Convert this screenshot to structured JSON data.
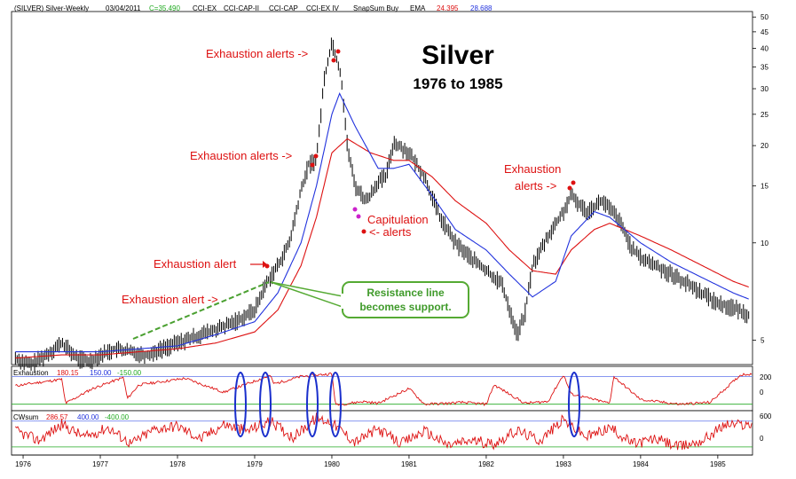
{
  "header": {
    "symbol": "(SILVER) Silver-Weekly",
    "date": "03/04/2011",
    "close": "C=35.490",
    "ind1": "CCI-EX",
    "ind2": "CCI-CAP-II",
    "ind3": "CCI-CAP",
    "ind4": "CCI-EX IV",
    "snap": "SnapSum Buy",
    "ema_label": "EMA",
    "ema1": "24.395",
    "ema2": "28.688"
  },
  "colors": {
    "price": "#000000",
    "ema_fast": "#2233dd",
    "ema_slow": "#dd1111",
    "annotation": "#dd1111",
    "callout_fill": "#ffffff",
    "callout_border": "#55aa33",
    "callout_text": "#3f9a2a",
    "support_line": "#4aa030",
    "ellipse": "#1a2fcc",
    "close_green": "#22aa22"
  },
  "chart_data": {
    "type": "line",
    "title": "Silver",
    "subtitle": "1976 to 1985",
    "y_scale": "log",
    "ylim": [
      4.2,
      52
    ],
    "y_ticks": [
      5,
      10,
      15,
      20,
      25,
      30,
      35,
      40,
      45,
      50
    ],
    "x_ticks": [
      "1976",
      "1977",
      "1978",
      "1979",
      "1980",
      "1981",
      "1982",
      "1983",
      "1984",
      "1985"
    ],
    "x_range": [
      1975.85,
      1985.45
    ],
    "grid": false,
    "series": [
      {
        "key": "price",
        "style": "ohlc",
        "x": [
          1975.9,
          1976.1,
          1976.3,
          1976.5,
          1976.7,
          1976.85,
          1977.0,
          1977.2,
          1977.4,
          1977.6,
          1977.8,
          1978.0,
          1978.2,
          1978.4,
          1978.6,
          1978.8,
          1979.0,
          1979.15,
          1979.3,
          1979.45,
          1979.6,
          1979.7,
          1979.8,
          1979.9,
          1980.0,
          1980.05,
          1980.12,
          1980.2,
          1980.3,
          1980.45,
          1980.6,
          1980.7,
          1980.8,
          1981.0,
          1981.2,
          1981.4,
          1981.6,
          1981.8,
          1982.0,
          1982.2,
          1982.4,
          1982.5,
          1982.6,
          1982.8,
          1983.0,
          1983.1,
          1983.3,
          1983.5,
          1983.7,
          1983.9,
          1984.0,
          1984.2,
          1984.4,
          1984.6,
          1984.8,
          1985.0,
          1985.2,
          1985.4
        ],
        "y": [
          4.4,
          4.2,
          4.5,
          4.9,
          4.4,
          4.3,
          4.5,
          4.7,
          4.6,
          4.5,
          4.7,
          4.9,
          5.1,
          5.3,
          5.5,
          5.8,
          6.2,
          7.5,
          8.5,
          10.0,
          14.5,
          17.5,
          18.0,
          32.0,
          42.0,
          38.0,
          33.0,
          20.0,
          15.0,
          13.5,
          15.5,
          16.0,
          20.5,
          19.0,
          16.0,
          12.0,
          10.0,
          9.0,
          8.2,
          7.5,
          5.2,
          6.0,
          8.5,
          10.5,
          12.5,
          14.0,
          12.5,
          13.5,
          12.0,
          9.5,
          9.0,
          8.5,
          8.0,
          7.5,
          7.0,
          6.5,
          6.3,
          6.0
        ]
      },
      {
        "key": "ema_fast",
        "style": "line",
        "x": [
          1975.9,
          1976.5,
          1977.0,
          1977.5,
          1978.0,
          1978.5,
          1979.0,
          1979.3,
          1979.6,
          1979.8,
          1980.0,
          1980.1,
          1980.3,
          1980.6,
          1980.8,
          1981.0,
          1981.3,
          1981.6,
          1982.0,
          1982.3,
          1982.6,
          1982.9,
          1983.1,
          1983.4,
          1983.6,
          1984.0,
          1984.4,
          1984.8,
          1985.2,
          1985.4
        ],
        "y": [
          4.6,
          4.6,
          4.6,
          4.7,
          4.8,
          5.2,
          5.7,
          7.0,
          10.0,
          15.0,
          25.0,
          29.0,
          23.0,
          17.0,
          17.0,
          17.5,
          14.0,
          11.0,
          9.5,
          8.0,
          6.8,
          7.6,
          10.5,
          12.5,
          12.0,
          10.0,
          8.7,
          7.8,
          7.0,
          6.7
        ]
      },
      {
        "key": "ema_slow",
        "style": "line",
        "x": [
          1975.9,
          1976.5,
          1977.0,
          1977.5,
          1978.0,
          1978.5,
          1979.0,
          1979.3,
          1979.6,
          1979.8,
          1980.0,
          1980.2,
          1980.5,
          1980.8,
          1981.0,
          1981.3,
          1981.6,
          1982.0,
          1982.3,
          1982.6,
          1982.9,
          1983.1,
          1983.4,
          1983.6,
          1984.0,
          1984.4,
          1984.8,
          1985.2,
          1985.4
        ],
        "y": [
          4.4,
          4.5,
          4.5,
          4.6,
          4.7,
          4.9,
          5.3,
          6.2,
          8.5,
          12.0,
          19.0,
          21.0,
          19.0,
          18.0,
          18.0,
          16.0,
          13.5,
          11.5,
          9.5,
          8.2,
          8.0,
          9.5,
          11.0,
          11.5,
          10.5,
          9.5,
          8.5,
          7.6,
          7.3
        ]
      }
    ],
    "panels": [
      {
        "key": "exhaustion",
        "label": "Exhaustion",
        "v1": "180.15",
        "v2": "150.00",
        "v3": "-150.00",
        "ticks": [
          "200",
          "0"
        ],
        "ylim": [
          -220,
          260
        ],
        "levels": [
          150,
          -150
        ],
        "x": [
          1975.9,
          1976.5,
          1976.55,
          1976.9,
          1977.3,
          1977.35,
          1977.5,
          1978.1,
          1978.6,
          1979.2,
          1979.25,
          1979.6,
          1980.0,
          1980.05,
          1980.4,
          1980.6,
          1981.0,
          1981.2,
          1981.5,
          1981.7,
          1982.0,
          1982.1,
          1982.5,
          1982.8,
          1983.0,
          1983.1,
          1983.6,
          1983.65,
          1984.0,
          1984.5,
          1984.9,
          1985.3,
          1985.45
        ],
        "values": [
          50,
          120,
          -140,
          20,
          140,
          -90,
          60,
          130,
          -20,
          160,
          70,
          150,
          180,
          -160,
          -120,
          -140,
          20,
          -150,
          -140,
          -130,
          -150,
          60,
          -140,
          -120,
          170,
          -40,
          -140,
          150,
          -100,
          -150,
          -130,
          170,
          180
        ]
      },
      {
        "key": "cwsum",
        "label": "CWsum",
        "v1": "286.57",
        "v2": "400.00",
        "v3": "-400.00",
        "ticks": [
          "600",
          "0"
        ],
        "ylim": [
          -650,
          720
        ],
        "levels": [
          400,
          -400
        ],
        "x": [
          1975.9,
          1976.2,
          1976.5,
          1976.8,
          1977.1,
          1977.4,
          1977.7,
          1978.0,
          1978.3,
          1978.6,
          1978.9,
          1979.2,
          1979.5,
          1979.8,
          1980.0,
          1980.3,
          1980.6,
          1980.9,
          1981.2,
          1981.5,
          1981.8,
          1982.1,
          1982.4,
          1982.7,
          1983.0,
          1983.3,
          1983.6,
          1983.9,
          1984.2,
          1984.5,
          1984.8,
          1985.1,
          1985.45
        ],
        "values": [
          100,
          -200,
          300,
          -100,
          200,
          -300,
          150,
          250,
          -150,
          300,
          100,
          400,
          -100,
          500,
          350,
          -250,
          150,
          -300,
          100,
          -350,
          -200,
          -300,
          100,
          -200,
          450,
          -100,
          200,
          -300,
          -150,
          -400,
          -200,
          300,
          286
        ]
      }
    ]
  },
  "annotations": [
    {
      "key": "exh1",
      "text": "Exhaustion alert ->"
    },
    {
      "key": "exh2",
      "text": "Exhaustion alert"
    },
    {
      "key": "exh3",
      "text": "Exhaustion alerts ->"
    },
    {
      "key": "exh4",
      "text": "Exhaustion alerts ->"
    },
    {
      "key": "exh5a",
      "text": "Exhaustion"
    },
    {
      "key": "exh5b",
      "text": "alerts ->"
    },
    {
      "key": "cap1",
      "text": "Capitulation"
    },
    {
      "key": "cap2",
      "text": "<- alerts"
    }
  ],
  "callout": {
    "line1": "Resistance line",
    "line2": "becomes support."
  }
}
